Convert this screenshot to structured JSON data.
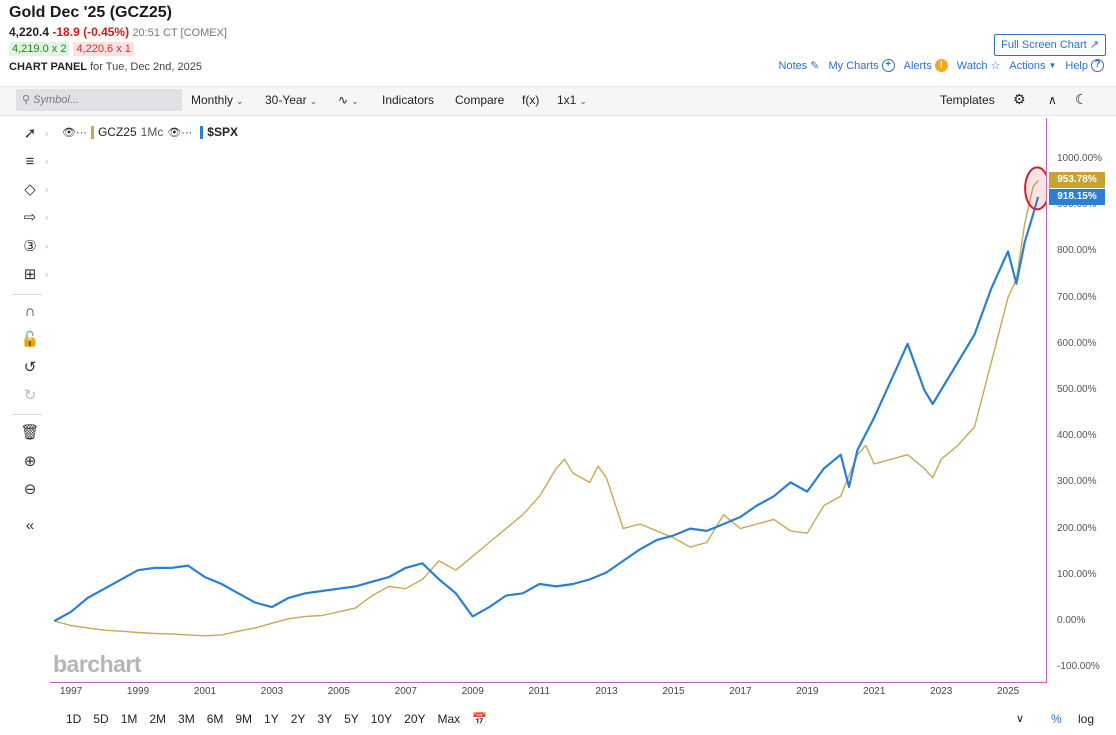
{
  "header": {
    "title": "Gold Dec '25 (GCZ25)",
    "last": "4,220.4",
    "change": "-18.9 (-0.45%)",
    "time": "20:51 CT [COMEX]",
    "bid": "4,219.0 x 2",
    "ask": "4,220.6 x 1",
    "panel_label": "CHART PANEL",
    "panel_date": "for Tue, Dec 2nd, 2025",
    "fullscreen_label": "Full Screen Chart"
  },
  "top_links": {
    "notes": "Notes",
    "my_charts": "My Charts",
    "alerts": "Alerts",
    "watch": "Watch",
    "actions": "Actions",
    "help": "Help"
  },
  "toolbar": {
    "search_placeholder": "Symbol...",
    "interval": "Monthly",
    "range": "30-Year",
    "indicators": "Indicators",
    "compare": "Compare",
    "fx": "f(x)",
    "layout": "1x1",
    "templates": "Templates"
  },
  "legend": {
    "series1": "GCZ25",
    "series1_suffix": "1Mc",
    "series2": "$SPX"
  },
  "watermark": "barchart",
  "price_tags": {
    "gold": "953.78%",
    "spx": "918.15%"
  },
  "colors": {
    "gold": "#c8a951",
    "spx": "#2a7fd4",
    "axis_border": "#c85fb8",
    "highlight": "#d0202a"
  },
  "range_buttons": [
    "1D",
    "5D",
    "1M",
    "2M",
    "3M",
    "6M",
    "9M",
    "1Y",
    "2Y",
    "3Y",
    "5Y",
    "10Y",
    "20Y",
    "Max"
  ],
  "bottom_right": {
    "percent": "%",
    "log": "log"
  },
  "chart_data": {
    "type": "line",
    "y_tick_labels": [
      "1000.00%",
      "900.00%",
      "800.00%",
      "700.00%",
      "600.00%",
      "500.00%",
      "400.00%",
      "300.00%",
      "200.00%",
      "100.00%",
      "0.00%",
      "-100.00%"
    ],
    "x_tick_labels": [
      "1997",
      "1999",
      "2001",
      "2003",
      "2005",
      "2007",
      "2009",
      "2011",
      "2013",
      "2015",
      "2017",
      "2019",
      "2021",
      "2023",
      "2025"
    ],
    "ylim": [
      -100,
      1000
    ],
    "xlim": [
      1996.5,
      2026
    ],
    "grid": false,
    "series": [
      {
        "name": "GCZ25",
        "color": "#c8a951",
        "points": [
          [
            1996.5,
            0
          ],
          [
            1997,
            -10
          ],
          [
            1997.5,
            -15
          ],
          [
            1998,
            -20
          ],
          [
            1998.5,
            -22
          ],
          [
            1999,
            -25
          ],
          [
            1999.5,
            -27
          ],
          [
            2000,
            -28
          ],
          [
            2000.5,
            -30
          ],
          [
            2001,
            -32
          ],
          [
            2001.5,
            -30
          ],
          [
            2002,
            -22
          ],
          [
            2002.5,
            -15
          ],
          [
            2003,
            -5
          ],
          [
            2003.5,
            5
          ],
          [
            2004,
            10
          ],
          [
            2004.5,
            12
          ],
          [
            2005,
            20
          ],
          [
            2005.5,
            28
          ],
          [
            2006,
            55
          ],
          [
            2006.5,
            75
          ],
          [
            2007,
            70
          ],
          [
            2007.5,
            90
          ],
          [
            2008,
            130
          ],
          [
            2008.5,
            110
          ],
          [
            2009,
            140
          ],
          [
            2009.5,
            170
          ],
          [
            2010,
            200
          ],
          [
            2010.5,
            230
          ],
          [
            2011,
            270
          ],
          [
            2011.5,
            330
          ],
          [
            2011.75,
            350
          ],
          [
            2012,
            320
          ],
          [
            2012.5,
            300
          ],
          [
            2012.75,
            335
          ],
          [
            2013,
            310
          ],
          [
            2013.5,
            200
          ],
          [
            2014,
            210
          ],
          [
            2014.5,
            195
          ],
          [
            2015,
            180
          ],
          [
            2015.5,
            160
          ],
          [
            2016,
            170
          ],
          [
            2016.5,
            230
          ],
          [
            2017,
            200
          ],
          [
            2017.5,
            210
          ],
          [
            2018,
            220
          ],
          [
            2018.5,
            195
          ],
          [
            2019,
            190
          ],
          [
            2019.5,
            250
          ],
          [
            2020,
            270
          ],
          [
            2020.5,
            360
          ],
          [
            2020.75,
            380
          ],
          [
            2021,
            340
          ],
          [
            2021.5,
            350
          ],
          [
            2022,
            360
          ],
          [
            2022.5,
            330
          ],
          [
            2022.75,
            310
          ],
          [
            2023,
            350
          ],
          [
            2023.5,
            380
          ],
          [
            2024,
            420
          ],
          [
            2024.5,
            560
          ],
          [
            2025,
            700
          ],
          [
            2025.25,
            740
          ],
          [
            2025.5,
            860
          ],
          [
            2025.75,
            940
          ],
          [
            2025.9,
            953.78
          ]
        ]
      },
      {
        "name": "$SPX",
        "color": "#2a7fd4",
        "points": [
          [
            1996.5,
            0
          ],
          [
            1997,
            20
          ],
          [
            1997.5,
            50
          ],
          [
            1998,
            70
          ],
          [
            1998.5,
            90
          ],
          [
            1999,
            110
          ],
          [
            1999.5,
            115
          ],
          [
            2000,
            115
          ],
          [
            2000.5,
            120
          ],
          [
            2001,
            95
          ],
          [
            2001.5,
            80
          ],
          [
            2002,
            60
          ],
          [
            2002.5,
            40
          ],
          [
            2003,
            30
          ],
          [
            2003.5,
            50
          ],
          [
            2004,
            60
          ],
          [
            2004.5,
            65
          ],
          [
            2005,
            70
          ],
          [
            2005.5,
            75
          ],
          [
            2006,
            85
          ],
          [
            2006.5,
            95
          ],
          [
            2007,
            115
          ],
          [
            2007.5,
            125
          ],
          [
            2008,
            90
          ],
          [
            2008.5,
            60
          ],
          [
            2009,
            10
          ],
          [
            2009.5,
            30
          ],
          [
            2010,
            55
          ],
          [
            2010.5,
            60
          ],
          [
            2011,
            80
          ],
          [
            2011.5,
            75
          ],
          [
            2012,
            80
          ],
          [
            2012.5,
            90
          ],
          [
            2013,
            105
          ],
          [
            2013.5,
            130
          ],
          [
            2014,
            155
          ],
          [
            2014.5,
            175
          ],
          [
            2015,
            185
          ],
          [
            2015.5,
            200
          ],
          [
            2016,
            195
          ],
          [
            2016.5,
            210
          ],
          [
            2017,
            225
          ],
          [
            2017.5,
            250
          ],
          [
            2018,
            270
          ],
          [
            2018.5,
            300
          ],
          [
            2019,
            280
          ],
          [
            2019.5,
            330
          ],
          [
            2020,
            360
          ],
          [
            2020.25,
            290
          ],
          [
            2020.5,
            370
          ],
          [
            2021,
            440
          ],
          [
            2021.5,
            520
          ],
          [
            2022,
            600
          ],
          [
            2022.5,
            500
          ],
          [
            2022.75,
            470
          ],
          [
            2023,
            500
          ],
          [
            2023.5,
            560
          ],
          [
            2024,
            620
          ],
          [
            2024.5,
            720
          ],
          [
            2025,
            800
          ],
          [
            2025.25,
            730
          ],
          [
            2025.5,
            820
          ],
          [
            2025.75,
            880
          ],
          [
            2025.9,
            918.15
          ]
        ]
      }
    ]
  }
}
